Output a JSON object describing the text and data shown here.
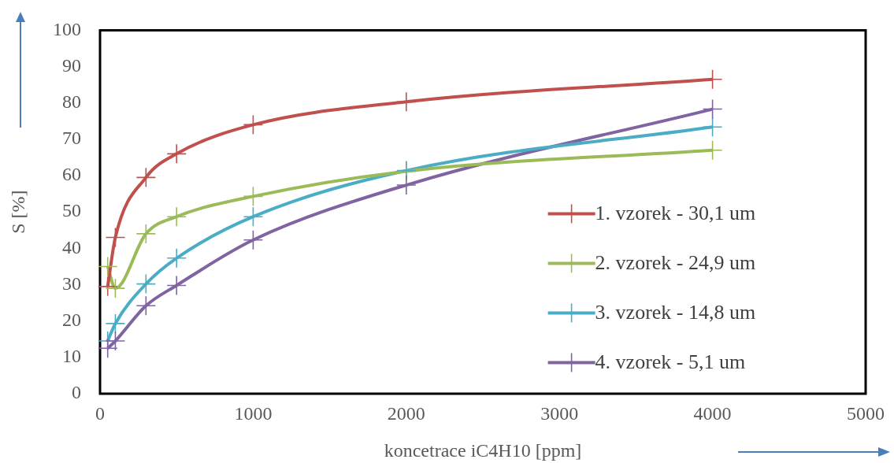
{
  "chart_data": {
    "type": "line",
    "xlabel": "koncetrace iC4H10 [ppm]",
    "ylabel": "S [%]",
    "xlim": [
      0,
      5000
    ],
    "xticks": [
      0,
      1000,
      2000,
      3000,
      4000,
      5000
    ],
    "ylim": [
      0,
      100
    ],
    "yticks": [
      0,
      10,
      20,
      30,
      40,
      50,
      60,
      70,
      80,
      90,
      100
    ],
    "grid": false,
    "legend": "right",
    "marker": "cross",
    "line_style": "solid",
    "x": [
      50,
      100,
      300,
      500,
      1000,
      2000,
      4000
    ],
    "series": [
      {
        "name": "1. vzorek - 30,1 um",
        "color": "#c0504d",
        "values": [
          29.5,
          43,
          59.5,
          66,
          74,
          80.3,
          86.5
        ]
      },
      {
        "name": "2. vzorek - 24,9 um",
        "color": "#9bbb59",
        "values": [
          35,
          29,
          44,
          48.7,
          54.3,
          61.2,
          67
        ]
      },
      {
        "name": "3. vzorek - 14,8 um",
        "color": "#4bacc6",
        "values": [
          14.5,
          19.3,
          30.2,
          37.3,
          48.7,
          61.4,
          73.4
        ]
      },
      {
        "name": "4. vzorek - 5,1 um",
        "color": "#8064a2",
        "values": [
          12.5,
          14.5,
          24.2,
          29.8,
          42.3,
          57.4,
          78.3
        ]
      }
    ]
  }
}
